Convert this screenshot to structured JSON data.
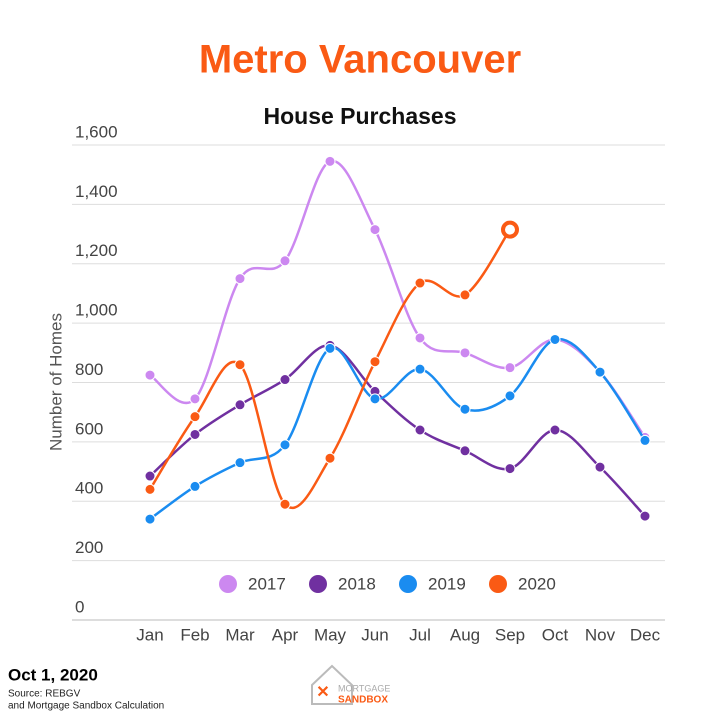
{
  "chart_data": {
    "type": "line",
    "title": "Metro Vancouver",
    "subtitle": "House Purchases",
    "y_label": "Number of Homes",
    "categories": [
      "Jan",
      "Feb",
      "Mar",
      "Apr",
      "May",
      "Jun",
      "Jul",
      "Aug",
      "Sep",
      "Oct",
      "Nov",
      "Dec"
    ],
    "series": [
      {
        "name": "2017",
        "color": "#cc88f0",
        "values": [
          825,
          745,
          1150,
          1210,
          1545,
          1315,
          950,
          900,
          850,
          945,
          835,
          615
        ]
      },
      {
        "name": "2018",
        "color": "#7030a0",
        "values": [
          485,
          625,
          725,
          810,
          925,
          770,
          640,
          570,
          510,
          640,
          515,
          350
        ]
      },
      {
        "name": "2019",
        "color": "#1a8cf0",
        "values": [
          340,
          450,
          530,
          590,
          915,
          745,
          845,
          710,
          755,
          945,
          835,
          605
        ]
      },
      {
        "name": "2020",
        "color": "#fa5a14",
        "values": [
          440,
          685,
          860,
          390,
          545,
          870,
          1135,
          1095,
          1315,
          null,
          null,
          null
        ]
      }
    ],
    "ylim": [
      0,
      1600
    ],
    "yticks": [
      0,
      200,
      400,
      600,
      800,
      {
        "value": 1000,
        "label": "1,000"
      },
      {
        "value": 1200,
        "label": "1,200"
      },
      {
        "value": 1400,
        "label": "1,400"
      },
      {
        "value": 1600,
        "label": "1,600"
      }
    ],
    "grid": true,
    "legend": "bottom"
  },
  "footer": {
    "date": "Oct 1, 2020",
    "source": "Source: REBGV",
    "source2": "and Mortgage Sandbox Calculation",
    "logo_top": "MORTGAGE",
    "logo_bottom": "SANDBOX"
  }
}
